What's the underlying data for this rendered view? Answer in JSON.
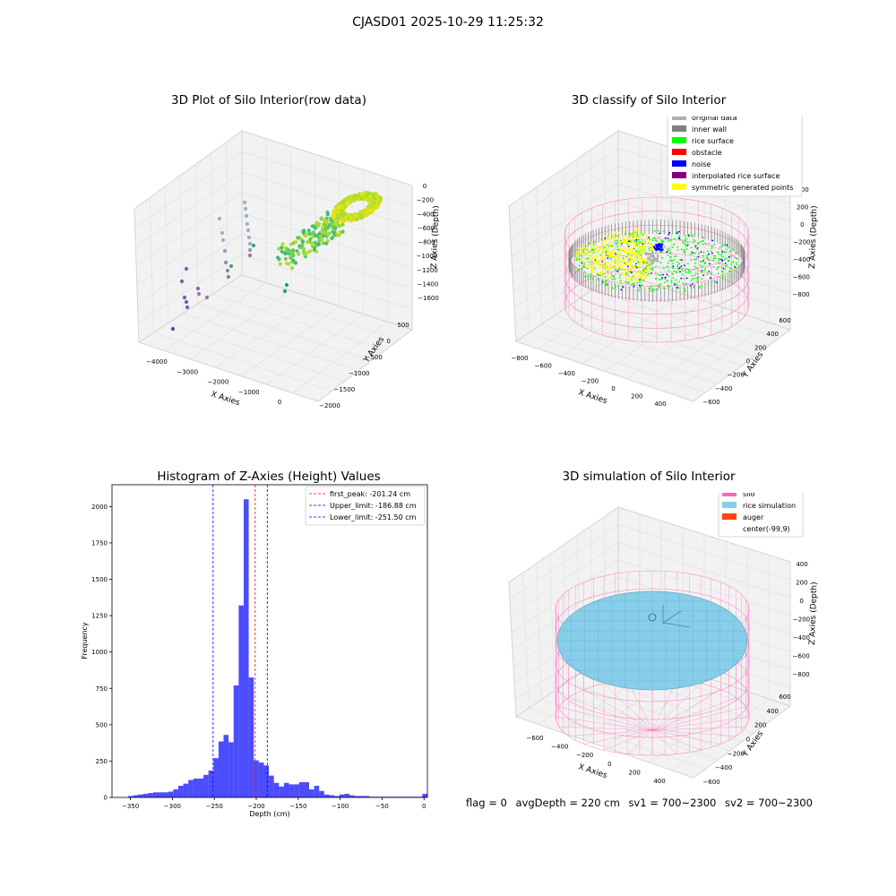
{
  "title": "CJASD01 2025-10-29 11:25:32",
  "colors": {
    "grey_pane": "#f2f2f2",
    "hist_bar": "#0000ff",
    "silo": "#ff69b4",
    "rice_sim": "#87ceeb",
    "auger": "#ff4500",
    "rice_surface": "#00ff00",
    "noise": "#0000ff",
    "obstacle": "#ff0000",
    "inner_wall": "#808080",
    "original": "#b0b0b0",
    "interpolated": "#800080",
    "symmetric": "#ffff00"
  },
  "status": {
    "flag": "flag = 0",
    "avg_depth": "avgDepth = 220 cm",
    "sv1": "sv1 = 700~2300",
    "sv2": "sv2 = 700~2300"
  },
  "chart_data": [
    {
      "type": "scatter",
      "title": "3D Plot of Silo Interior(row data)",
      "xlabel": "X Axies",
      "ylabel": "Y Axies",
      "zlabel": "Z Axies (Depth)",
      "x_ticks": [
        "−4000",
        "−3000",
        "−2000",
        "−1000",
        "0"
      ],
      "y_ticks": [
        "500",
        "0",
        "−500",
        "−1000",
        "−1500",
        "−2000"
      ],
      "z_ticks": [
        "0",
        "−200",
        "−400",
        "−600",
        "−800",
        "−1000",
        "−1200",
        "−1400",
        "−1600"
      ]
    },
    {
      "type": "scatter",
      "title": "3D classify of Silo Interior",
      "xlabel": "X Axies",
      "ylabel": "Y Axies",
      "zlabel": "Z Axies (Depth)",
      "x_ticks": [
        "−800",
        "−600",
        "−400",
        "−200",
        "0",
        "200",
        "400"
      ],
      "y_ticks": [
        "600",
        "400",
        "200",
        "0",
        "−200",
        "−400",
        "−600"
      ],
      "z_ticks": [
        "400",
        "200",
        "0",
        "−200",
        "−400",
        "−600",
        "−800"
      ],
      "legend": [
        {
          "label": "original data",
          "color": "#b0b0b0"
        },
        {
          "label": "inner wall",
          "color": "#808080"
        },
        {
          "label": "rice surface",
          "color": "#00ff00"
        },
        {
          "label": "obstacle",
          "color": "#ff0000"
        },
        {
          "label": "noise",
          "color": "#0000ff"
        },
        {
          "label": "interpolated rice surface",
          "color": "#800080"
        },
        {
          "label": "symmetric generated points",
          "color": "#ffff00"
        }
      ]
    },
    {
      "type": "bar",
      "title": "Histogram of Z-Axies (Height) Values",
      "xlabel": "Depth (cm)",
      "ylabel": "Frequency",
      "xlim": [
        -372,
        4
      ],
      "ylim": [
        0,
        2150
      ],
      "x_ticks": [
        -350,
        -300,
        -250,
        -200,
        -150,
        -100,
        -50,
        0
      ],
      "y_ticks": [
        0,
        250,
        500,
        750,
        1000,
        1250,
        1500,
        1750,
        2000
      ],
      "bin_width": 6,
      "bins": [
        [
          -353,
          10
        ],
        [
          -347,
          15
        ],
        [
          -341,
          20
        ],
        [
          -335,
          25
        ],
        [
          -329,
          30
        ],
        [
          -323,
          35
        ],
        [
          -317,
          35
        ],
        [
          -311,
          35
        ],
        [
          -305,
          40
        ],
        [
          -299,
          55
        ],
        [
          -293,
          80
        ],
        [
          -287,
          95
        ],
        [
          -281,
          120
        ],
        [
          -275,
          130
        ],
        [
          -269,
          130
        ],
        [
          -263,
          155
        ],
        [
          -257,
          185
        ],
        [
          -251,
          270
        ],
        [
          -245,
          385
        ],
        [
          -239,
          430
        ],
        [
          -233,
          380
        ],
        [
          -227,
          770
        ],
        [
          -221,
          1320
        ],
        [
          -215,
          2050
        ],
        [
          -209,
          825
        ],
        [
          -203,
          255
        ],
        [
          -197,
          240
        ],
        [
          -191,
          220
        ],
        [
          -185,
          150
        ],
        [
          -179,
          100
        ],
        [
          -173,
          75
        ],
        [
          -167,
          100
        ],
        [
          -161,
          90
        ],
        [
          -155,
          90
        ],
        [
          -149,
          105
        ],
        [
          -143,
          105
        ],
        [
          -137,
          55
        ],
        [
          -131,
          80
        ],
        [
          -125,
          45
        ],
        [
          -119,
          20
        ],
        [
          -113,
          15
        ],
        [
          -107,
          10
        ],
        [
          -101,
          20
        ],
        [
          -95,
          25
        ],
        [
          -89,
          15
        ],
        [
          -83,
          10
        ],
        [
          -77,
          10
        ],
        [
          -71,
          10
        ],
        [
          -65,
          5
        ],
        [
          -59,
          5
        ],
        [
          -53,
          5
        ],
        [
          -47,
          5
        ],
        [
          -41,
          5
        ],
        [
          -35,
          5
        ],
        [
          -29,
          5
        ],
        [
          -23,
          5
        ],
        [
          -17,
          5
        ],
        [
          -11,
          5
        ],
        [
          -5,
          5
        ],
        [
          -2,
          25
        ]
      ],
      "lines": [
        {
          "label": "first_peak: -201.24 cm",
          "x": -201.24,
          "color": "#ff0000"
        },
        {
          "label": "Upper_limit: -186.88 cm",
          "x": -186.88,
          "color": "#0000ff"
        },
        {
          "label": "Lower_limit: -251.50 cm",
          "x": -251.5,
          "color": "#0000ff"
        }
      ]
    },
    {
      "type": "scatter",
      "title": "3D simulation of Silo Interior",
      "xlabel": "X Axies",
      "ylabel": "Y Axies",
      "zlabel": "Z Axies (Depth)",
      "x_ticks": [
        "−600",
        "−400",
        "−200",
        "0",
        "200",
        "400"
      ],
      "y_ticks": [
        "600",
        "400",
        "200",
        "0",
        "−200",
        "−400",
        "−600"
      ],
      "z_ticks": [
        "400",
        "200",
        "0",
        "−200",
        "−400",
        "−600",
        "−800"
      ],
      "legend": [
        {
          "label": "silo",
          "color": "#ff69b4"
        },
        {
          "label": "rice simulation",
          "color": "#87ceeb"
        },
        {
          "label": "auger",
          "color": "#ff4500"
        },
        {
          "label": "center(-99,9)",
          "color": "#ffffff"
        }
      ]
    }
  ]
}
